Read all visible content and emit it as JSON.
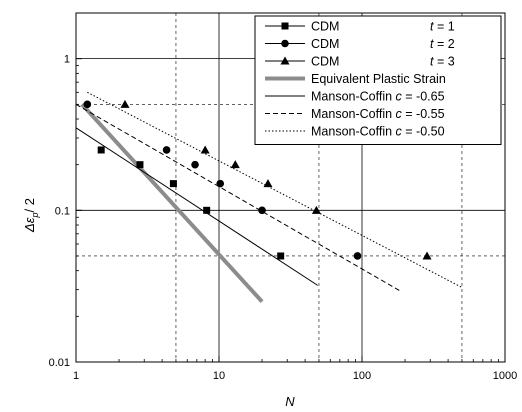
{
  "chart_data": {
    "type": "line",
    "x_scale": "log",
    "y_scale": "log",
    "xlim": [
      1,
      1000
    ],
    "ylim": [
      0.01,
      2
    ],
    "grid": true,
    "legend_placement": "top-right",
    "xlabel": "N",
    "ylabel_main": "Δε",
    "ylabel_sub": "p",
    "ylabel_suffix": "/ 2",
    "x_ticks": [
      {
        "value": 1,
        "label": "1"
      },
      {
        "value": 10,
        "label": "10"
      },
      {
        "value": 100,
        "label": "100"
      },
      {
        "value": 1000,
        "label": "1000"
      }
    ],
    "y_ticks": [
      {
        "value": 0.01,
        "label": "0.01"
      },
      {
        "value": 0.1,
        "label": "0.1"
      },
      {
        "value": 1,
        "label": "1"
      }
    ],
    "y_minor_gridlines": [
      0.05,
      0.5
    ],
    "x_minor_gridlines": [
      5,
      50,
      500
    ],
    "series": [
      {
        "name": "CDM",
        "t_label": "t = 1",
        "marker": "square",
        "line": "none",
        "x": [
          1.5,
          2.8,
          4.8,
          8.2,
          27
        ],
        "y": [
          0.25,
          0.2,
          0.15,
          0.1,
          0.05
        ]
      },
      {
        "name": "CDM",
        "t_label": "t = 2",
        "marker": "circle",
        "line": "none",
        "x": [
          1.2,
          4.3,
          6.8,
          10.2,
          20,
          93
        ],
        "y": [
          0.5,
          0.25,
          0.2,
          0.15,
          0.1,
          0.05
        ]
      },
      {
        "name": "CDM",
        "t_label": "t = 3",
        "marker": "triangle",
        "line": "none",
        "x": [
          2.2,
          8,
          13,
          22,
          48,
          285
        ],
        "y": [
          0.5,
          0.25,
          0.2,
          0.15,
          0.1,
          0.05
        ]
      },
      {
        "name": "Equivalent Plastic Strain",
        "marker": "none",
        "line": "thick-gray",
        "x": [
          1.1,
          20
        ],
        "y": [
          0.5,
          0.025
        ]
      },
      {
        "name": "Manson-Coffin",
        "c_label": "c = -0.65",
        "marker": "none",
        "line": "solid",
        "x": [
          1,
          49
        ],
        "y": [
          0.35,
          0.032
        ]
      },
      {
        "name": "Manson-Coffin",
        "c_label": "c = -0.55",
        "marker": "none",
        "line": "dashed",
        "x": [
          1,
          190
        ],
        "y": [
          0.5,
          0.029
        ]
      },
      {
        "name": "Manson-Coffin",
        "c_label": "c = -0.50",
        "marker": "none",
        "line": "dotted",
        "x": [
          1.2,
          500
        ],
        "y": [
          0.6,
          0.031
        ]
      }
    ]
  },
  "legend": {
    "entries": [
      {
        "label": "CDM",
        "suffix_italic": "t",
        "suffix_rest": " = 1"
      },
      {
        "label": "CDM",
        "suffix_italic": "t",
        "suffix_rest": " = 2"
      },
      {
        "label": "CDM",
        "suffix_italic": "t",
        "suffix_rest": " = 3"
      },
      {
        "label": "Equivalent Plastic Strain",
        "suffix_italic": "",
        "suffix_rest": ""
      },
      {
        "label": "Manson-Coffin ",
        "suffix_italic": "c",
        "suffix_rest": " = -0.65"
      },
      {
        "label": "Manson-Coffin ",
        "suffix_italic": "c",
        "suffix_rest": " = -0.55"
      },
      {
        "label": "Manson-Coffin ",
        "suffix_italic": "c",
        "suffix_rest": " = -0.50"
      }
    ]
  },
  "colors": {
    "axis": "#000000",
    "grid": "#000000",
    "gray_line": "#8c8c8c",
    "series": "#000000"
  }
}
